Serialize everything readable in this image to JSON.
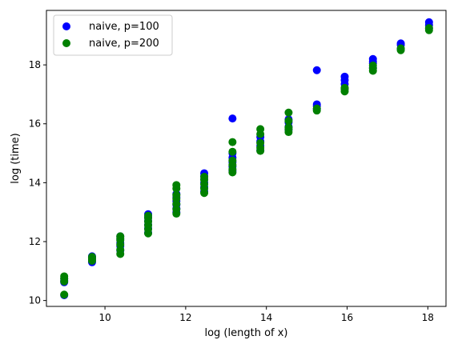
{
  "chart_data": {
    "type": "scatter",
    "title": "",
    "xlabel": "log (length of x)",
    "ylabel": "log (time)",
    "xlim": [
      8.55,
      18.45
    ],
    "ylim": [
      9.8,
      19.85
    ],
    "xticks": [
      10,
      12,
      14,
      16,
      18
    ],
    "yticks": [
      10,
      12,
      14,
      16,
      18
    ],
    "grid": false,
    "legend_position": "upper-left",
    "series": [
      {
        "name": "naive, p=100",
        "color": "#0000ff",
        "points": [
          [
            8.99,
            10.18
          ],
          [
            8.99,
            10.62
          ],
          [
            8.99,
            10.68
          ],
          [
            8.99,
            10.74
          ],
          [
            9.68,
            11.3
          ],
          [
            9.68,
            11.38
          ],
          [
            9.68,
            11.45
          ],
          [
            9.68,
            11.5
          ],
          [
            10.38,
            11.7
          ],
          [
            10.38,
            11.85
          ],
          [
            10.38,
            11.95
          ],
          [
            10.38,
            12.08
          ],
          [
            10.38,
            12.18
          ],
          [
            11.07,
            12.3
          ],
          [
            11.07,
            12.45
          ],
          [
            11.07,
            12.58
          ],
          [
            11.07,
            12.7
          ],
          [
            11.07,
            12.82
          ],
          [
            11.07,
            12.93
          ],
          [
            11.77,
            13.0
          ],
          [
            11.77,
            13.12
          ],
          [
            11.77,
            13.25
          ],
          [
            11.77,
            13.38
          ],
          [
            11.77,
            13.5
          ],
          [
            11.77,
            13.62
          ],
          [
            12.46,
            13.7
          ],
          [
            12.46,
            13.85
          ],
          [
            12.46,
            14.0
          ],
          [
            12.46,
            14.12
          ],
          [
            12.46,
            14.22
          ],
          [
            12.46,
            14.32
          ],
          [
            13.16,
            14.4
          ],
          [
            13.16,
            14.55
          ],
          [
            13.16,
            14.7
          ],
          [
            13.16,
            14.85
          ],
          [
            13.16,
            15.0
          ],
          [
            13.16,
            16.18
          ],
          [
            13.85,
            15.1
          ],
          [
            13.85,
            15.25
          ],
          [
            13.85,
            15.4
          ],
          [
            13.85,
            15.55
          ],
          [
            14.55,
            15.8
          ],
          [
            14.55,
            15.9
          ],
          [
            14.55,
            16.05
          ],
          [
            14.55,
            16.15
          ],
          [
            15.25,
            16.5
          ],
          [
            15.25,
            16.6
          ],
          [
            15.25,
            16.66
          ],
          [
            15.25,
            17.82
          ],
          [
            15.94,
            17.2
          ],
          [
            15.94,
            17.35
          ],
          [
            15.94,
            17.48
          ],
          [
            15.94,
            17.6
          ],
          [
            16.64,
            17.9
          ],
          [
            16.64,
            18.05
          ],
          [
            16.64,
            18.12
          ],
          [
            16.64,
            18.2
          ],
          [
            17.33,
            18.55
          ],
          [
            17.33,
            18.68
          ],
          [
            17.33,
            18.73
          ],
          [
            18.03,
            19.25
          ],
          [
            18.03,
            19.35
          ],
          [
            18.03,
            19.45
          ]
        ]
      },
      {
        "name": "naive, p=200",
        "color": "#008000",
        "points": [
          [
            8.99,
            10.2
          ],
          [
            8.99,
            10.65
          ],
          [
            8.99,
            10.75
          ],
          [
            8.99,
            10.82
          ],
          [
            9.68,
            11.35
          ],
          [
            9.68,
            11.42
          ],
          [
            9.68,
            11.48
          ],
          [
            10.38,
            11.58
          ],
          [
            10.38,
            11.72
          ],
          [
            10.38,
            11.9
          ],
          [
            10.38,
            12.05
          ],
          [
            10.38,
            12.12
          ],
          [
            10.38,
            12.18
          ],
          [
            11.07,
            12.28
          ],
          [
            11.07,
            12.42
          ],
          [
            11.07,
            12.55
          ],
          [
            11.07,
            12.68
          ],
          [
            11.07,
            12.8
          ],
          [
            11.07,
            12.88
          ],
          [
            11.77,
            12.95
          ],
          [
            11.77,
            13.1
          ],
          [
            11.77,
            13.28
          ],
          [
            11.77,
            13.45
          ],
          [
            11.77,
            13.58
          ],
          [
            11.77,
            13.8
          ],
          [
            11.77,
            13.92
          ],
          [
            12.46,
            13.65
          ],
          [
            12.46,
            13.8
          ],
          [
            12.46,
            13.95
          ],
          [
            12.46,
            14.1
          ],
          [
            12.46,
            14.2
          ],
          [
            13.16,
            14.35
          ],
          [
            13.16,
            14.45
          ],
          [
            13.16,
            14.6
          ],
          [
            13.16,
            14.75
          ],
          [
            13.16,
            15.05
          ],
          [
            13.16,
            15.38
          ],
          [
            13.85,
            15.08
          ],
          [
            13.85,
            15.18
          ],
          [
            13.85,
            15.35
          ],
          [
            13.85,
            15.65
          ],
          [
            13.85,
            15.82
          ],
          [
            14.55,
            15.72
          ],
          [
            14.55,
            15.82
          ],
          [
            14.55,
            15.88
          ],
          [
            14.55,
            16.1
          ],
          [
            14.55,
            16.38
          ],
          [
            15.25,
            16.45
          ],
          [
            15.25,
            16.52
          ],
          [
            15.94,
            17.1
          ],
          [
            15.94,
            17.18
          ],
          [
            15.94,
            17.22
          ],
          [
            16.64,
            17.8
          ],
          [
            16.64,
            17.88
          ],
          [
            16.64,
            17.98
          ],
          [
            17.33,
            18.5
          ],
          [
            17.33,
            18.56
          ],
          [
            18.03,
            19.18
          ],
          [
            18.03,
            19.25
          ]
        ]
      }
    ]
  }
}
